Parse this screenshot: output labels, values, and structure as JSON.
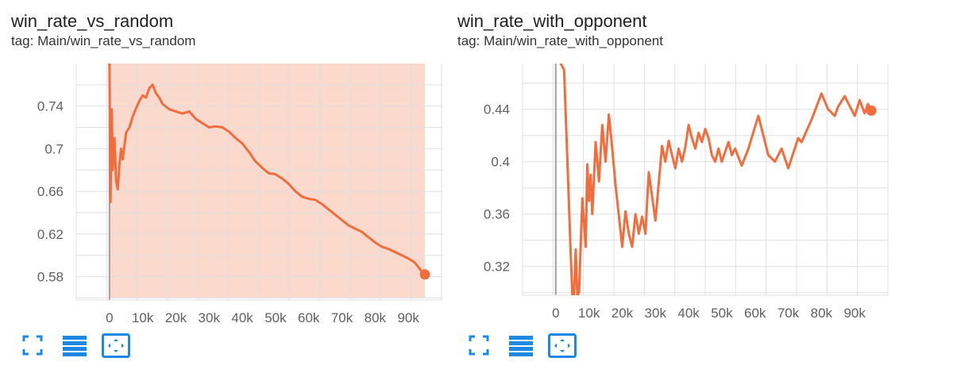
{
  "colors": {
    "line": "#f26d3d",
    "raw": "#fbd9cc",
    "grid": "#e0e0e0",
    "axis": "#9e9e9e",
    "icon": "#1e88e5"
  },
  "toolbar": {
    "icons": [
      "fullscreen-icon",
      "data-table-icon",
      "fit-domain-icon"
    ]
  },
  "charts": [
    {
      "title": "win_rate_vs_random",
      "tag": "tag: Main/win_rate_vs_random"
    },
    {
      "title": "win_rate_with_opponent",
      "tag": "tag: Main/win_rate_with_opponent"
    }
  ],
  "chart_data": [
    {
      "type": "line",
      "title": "win_rate_vs_random",
      "xlabel": "",
      "ylabel": "",
      "xlim": [
        -10000,
        100000
      ],
      "ylim": [
        0.558,
        0.78
      ],
      "x_ticks": [
        0,
        10000,
        20000,
        30000,
        40000,
        50000,
        60000,
        70000,
        80000,
        90000
      ],
      "x_tick_labels": [
        "0",
        "10k",
        "20k",
        "30k",
        "40k",
        "50k",
        "60k",
        "70k",
        "80k",
        "90k"
      ],
      "y_ticks": [
        0.58,
        0.62,
        0.66,
        0.7,
        0.74
      ],
      "y_tick_labels": [
        "0.58",
        "0.62",
        "0.66",
        "0.7",
        "0.74"
      ],
      "grid": true,
      "raw_band": {
        "x": [
          0,
          95000
        ],
        "y": [
          0.56,
          0.78
        ]
      },
      "series": [
        {
          "x": [
            0,
            300,
            700,
            1000,
            1500,
            2000,
            2500,
            3000,
            3500,
            4000,
            5000,
            6000,
            7000,
            8000,
            9000,
            10000,
            11000,
            12000,
            13000,
            14000,
            15000,
            16000,
            18000,
            20000,
            22000,
            24000,
            26000,
            28000,
            30000,
            32000,
            34000,
            36000,
            38000,
            40000,
            42000,
            44000,
            46000,
            48000,
            50000,
            52000,
            54000,
            56000,
            58000,
            60000,
            62000,
            64000,
            66000,
            68000,
            70000,
            72000,
            74000,
            76000,
            78000,
            80000,
            82000,
            84000,
            86000,
            88000,
            90000,
            92000,
            94000,
            95000
          ],
          "values": [
            0.78,
            0.65,
            0.737,
            0.68,
            0.71,
            0.67,
            0.662,
            0.685,
            0.7,
            0.69,
            0.715,
            0.72,
            0.73,
            0.738,
            0.745,
            0.75,
            0.748,
            0.757,
            0.76,
            0.752,
            0.748,
            0.742,
            0.737,
            0.735,
            0.733,
            0.735,
            0.728,
            0.724,
            0.72,
            0.721,
            0.72,
            0.716,
            0.71,
            0.705,
            0.697,
            0.688,
            0.682,
            0.677,
            0.676,
            0.672,
            0.667,
            0.66,
            0.655,
            0.653,
            0.652,
            0.648,
            0.643,
            0.638,
            0.633,
            0.628,
            0.625,
            0.622,
            0.617,
            0.612,
            0.608,
            0.606,
            0.603,
            0.6,
            0.597,
            0.593,
            0.585,
            0.582
          ]
        }
      ]
    },
    {
      "type": "line",
      "title": "win_rate_with_opponent",
      "xlabel": "",
      "ylabel": "",
      "xlim": [
        -10000,
        100000
      ],
      "ylim": [
        0.298,
        0.475
      ],
      "x_ticks": [
        0,
        10000,
        20000,
        30000,
        40000,
        50000,
        60000,
        70000,
        80000,
        90000
      ],
      "x_tick_labels": [
        "0",
        "10k",
        "20k",
        "30k",
        "40k",
        "50k",
        "60k",
        "70k",
        "80k",
        "90k"
      ],
      "y_ticks": [
        0.32,
        0.36,
        0.4,
        0.44
      ],
      "y_tick_labels": [
        "0.32",
        "0.36",
        "0.4",
        "0.44"
      ],
      "grid": true,
      "series": [
        {
          "x": [
            1500,
            2500,
            3500,
            4500,
            5000,
            5500,
            6000,
            6500,
            7000,
            8000,
            9000,
            9500,
            10000,
            10500,
            11000,
            12000,
            13000,
            14000,
            15000,
            16000,
            17000,
            18000,
            20000,
            21000,
            22000,
            23000,
            24000,
            25000,
            26000,
            27000,
            28000,
            30000,
            32000,
            33000,
            34000,
            35000,
            36000,
            37000,
            38000,
            39000,
            40000,
            41000,
            42000,
            43000,
            44000,
            45000,
            46000,
            47000,
            48000,
            49000,
            50000,
            52000,
            53000,
            54000,
            56000,
            58000,
            61000,
            64000,
            66000,
            68000,
            70000,
            73000,
            74000,
            77000,
            80000,
            82000,
            84000,
            85000,
            87000,
            90000,
            91500,
            93000,
            94000,
            95000
          ],
          "values": [
            0.475,
            0.47,
            0.4,
            0.33,
            0.298,
            0.298,
            0.333,
            0.298,
            0.3,
            0.372,
            0.335,
            0.398,
            0.37,
            0.39,
            0.36,
            0.415,
            0.385,
            0.428,
            0.4,
            0.436,
            0.41,
            0.382,
            0.335,
            0.362,
            0.345,
            0.335,
            0.36,
            0.345,
            0.358,
            0.345,
            0.392,
            0.355,
            0.412,
            0.4,
            0.416,
            0.405,
            0.395,
            0.41,
            0.4,
            0.411,
            0.428,
            0.418,
            0.41,
            0.422,
            0.415,
            0.425,
            0.418,
            0.405,
            0.4,
            0.41,
            0.4,
            0.415,
            0.405,
            0.41,
            0.397,
            0.41,
            0.435,
            0.405,
            0.4,
            0.41,
            0.395,
            0.418,
            0.415,
            0.432,
            0.452,
            0.44,
            0.435,
            0.442,
            0.45,
            0.435,
            0.447,
            0.437,
            0.444,
            0.439
          ]
        }
      ]
    }
  ]
}
